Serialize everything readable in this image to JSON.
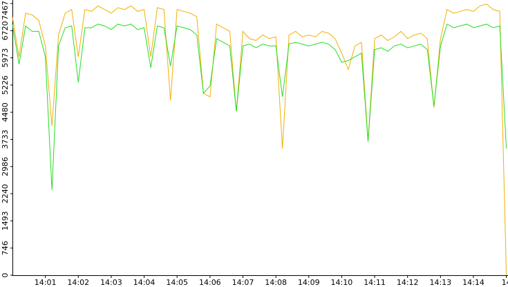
{
  "chart_data": {
    "type": "line",
    "x": [
      0,
      0.2,
      0.4,
      0.6,
      0.8,
      1,
      1.2,
      1.4,
      1.6,
      1.8,
      2,
      2.2,
      2.4,
      2.6,
      2.8,
      3,
      3.2,
      3.4,
      3.6,
      3.8,
      4,
      4.2,
      4.4,
      4.6,
      4.8,
      5,
      5.2,
      5.4,
      5.6,
      5.8,
      6,
      6.2,
      6.4,
      6.6,
      6.8,
      7,
      7.2,
      7.4,
      7.6,
      7.8,
      8,
      8.2,
      8.4,
      8.6,
      8.8,
      9,
      9.2,
      9.4,
      9.6,
      9.8,
      10,
      10.2,
      10.4,
      10.6,
      10.8,
      11,
      11.2,
      11.4,
      11.6,
      11.8,
      12,
      12.2,
      12.4,
      12.6,
      12.8,
      13,
      13.2,
      13.4,
      13.6,
      13.8,
      14,
      14.2,
      14.4,
      14.6,
      14.8,
      15
    ],
    "series": [
      {
        "color": "#f0b000",
        "values": [
          7100,
          6000,
          7200,
          7150,
          7000,
          6300,
          4100,
          6600,
          7200,
          7300,
          6000,
          7300,
          7250,
          7400,
          7300,
          7200,
          7350,
          7300,
          7400,
          7250,
          7300,
          6000,
          7350,
          7300,
          4800,
          7300,
          7250,
          7200,
          7100,
          5000,
          4900,
          6900,
          6800,
          6700,
          4500,
          6700,
          6500,
          6450,
          6600,
          6500,
          6550,
          3480,
          6600,
          6700,
          6550,
          6600,
          6550,
          6700,
          6650,
          6500,
          6100,
          5650,
          6300,
          6400,
          3700,
          6500,
          6600,
          6450,
          6550,
          6700,
          6500,
          6600,
          6650,
          6500,
          4600,
          6500,
          7300,
          7200,
          7250,
          7300,
          7250,
          7400,
          7450,
          7300,
          7250,
          0
        ]
      },
      {
        "color": "#22dd22",
        "values": [
          6900,
          5800,
          6850,
          6700,
          6700,
          6000,
          2340,
          6300,
          6800,
          6850,
          5300,
          6800,
          6800,
          6900,
          6850,
          6750,
          6900,
          6850,
          6900,
          6750,
          6800,
          5700,
          6850,
          6800,
          5750,
          6850,
          6800,
          6750,
          6600,
          5000,
          5200,
          6500,
          6400,
          6300,
          4500,
          6300,
          6350,
          6250,
          6350,
          6300,
          6300,
          4900,
          6350,
          6400,
          6350,
          6300,
          6350,
          6400,
          6350,
          6200,
          5850,
          5900,
          6000,
          6100,
          3670,
          6200,
          6250,
          6150,
          6300,
          6350,
          6250,
          6300,
          6350,
          6200,
          4650,
          6300,
          6900,
          6800,
          6850,
          6900,
          6800,
          6850,
          6900,
          6800,
          6850,
          3480
        ]
      }
    ],
    "xlim": [
      0,
      15.05
    ],
    "xticks": [
      {
        "value": 1,
        "label": "14:01"
      },
      {
        "value": 2,
        "label": "14:02"
      },
      {
        "value": 3,
        "label": "14:03"
      },
      {
        "value": 4,
        "label": "14:04"
      },
      {
        "value": 5,
        "label": "14:05"
      },
      {
        "value": 6,
        "label": "14:06"
      },
      {
        "value": 7,
        "label": "14:07"
      },
      {
        "value": 8,
        "label": "14:08"
      },
      {
        "value": 9,
        "label": "14:09"
      },
      {
        "value": 10,
        "label": "14:10"
      },
      {
        "value": 11,
        "label": "14:11"
      },
      {
        "value": 12,
        "label": "14:12"
      },
      {
        "value": 13,
        "label": "14:13"
      },
      {
        "value": 14,
        "label": "14:14"
      },
      {
        "value": 15,
        "label": "14"
      }
    ],
    "ylim": [
      0,
      7467
    ],
    "yticks": [
      0,
      746,
      1493,
      2240,
      2986,
      3733,
      4480,
      5226,
      5973,
      6720,
      7467
    ]
  }
}
